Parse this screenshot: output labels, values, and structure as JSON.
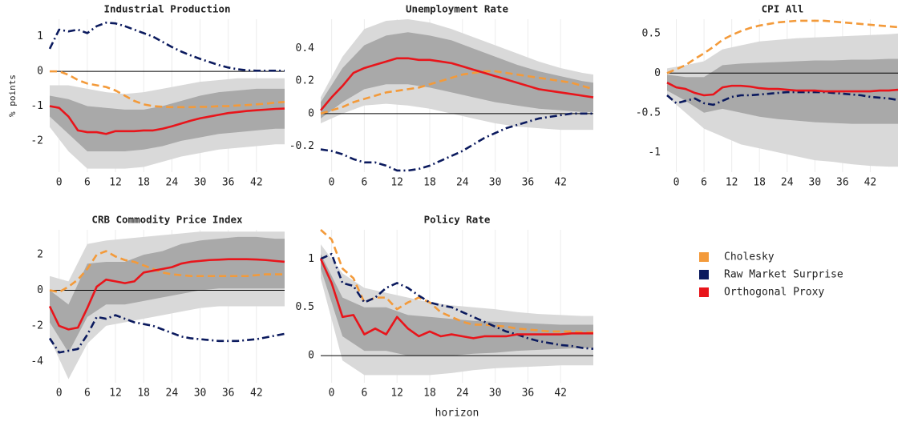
{
  "chart_data": [
    {
      "type": "line",
      "title": "Industrial Production",
      "ylabel": "% points",
      "x": [
        -2,
        0,
        2,
        4,
        6,
        8,
        10,
        12,
        14,
        16,
        18,
        20,
        22,
        24,
        26,
        28,
        30,
        32,
        34,
        36,
        38,
        40,
        42,
        44,
        46,
        48
      ],
      "xlim": [
        -2,
        48
      ],
      "xticks": [
        0,
        6,
        12,
        18,
        24,
        30,
        36,
        42
      ],
      "ylim": [
        -2.9,
        1.5
      ],
      "yticks": [
        -2,
        -1,
        0,
        1
      ],
      "grid": true,
      "reference_line": 0,
      "series": [
        {
          "name": "Cholesky",
          "color": "#f39a3a",
          "dash": "dashed",
          "values": [
            0,
            0,
            -0.1,
            -0.25,
            -0.35,
            -0.4,
            -0.45,
            -0.55,
            -0.7,
            -0.85,
            -0.95,
            -1.0,
            -1.02,
            -1.03,
            -1.03,
            -1.03,
            -1.02,
            -1.02,
            -1.0,
            -1.0,
            -0.98,
            -0.97,
            -0.95,
            -0.93,
            -0.9,
            -0.88
          ]
        },
        {
          "name": "Raw Market Surprise",
          "color": "#0b1a5e",
          "dash": "dashdot",
          "values": [
            0.65,
            1.2,
            1.15,
            1.2,
            1.1,
            1.3,
            1.4,
            1.38,
            1.3,
            1.2,
            1.1,
            1.0,
            0.85,
            0.7,
            0.57,
            0.46,
            0.36,
            0.27,
            0.18,
            0.11,
            0.06,
            0.03,
            0.02,
            0.02,
            0.02,
            0.02
          ]
        },
        {
          "name": "Orthogonal Proxy",
          "color": "#e8151b",
          "dash": "solid",
          "values": [
            -1.0,
            -1.05,
            -1.3,
            -1.7,
            -1.75,
            -1.75,
            -1.8,
            -1.72,
            -1.72,
            -1.72,
            -1.7,
            -1.7,
            -1.65,
            -1.58,
            -1.5,
            -1.42,
            -1.35,
            -1.3,
            -1.25,
            -1.2,
            -1.17,
            -1.14,
            -1.12,
            -1.1,
            -1.08,
            -1.07
          ]
        }
      ],
      "band_x": [
        -2,
        2,
        6,
        10,
        14,
        18,
        22,
        26,
        30,
        34,
        38,
        42,
        46,
        48
      ],
      "bands": [
        {
          "color": "#d9d9d9",
          "lower": [
            -1.6,
            -2.3,
            -2.8,
            -2.8,
            -2.8,
            -2.75,
            -2.6,
            -2.45,
            -2.35,
            -2.25,
            -2.2,
            -2.15,
            -2.1,
            -2.1
          ],
          "upper": [
            -0.4,
            -0.4,
            -0.5,
            -0.6,
            -0.65,
            -0.6,
            -0.5,
            -0.4,
            -0.3,
            -0.25,
            -0.2,
            -0.2,
            -0.2,
            -0.2
          ]
        },
        {
          "color": "#a9a9a9",
          "lower": [
            -1.3,
            -1.8,
            -2.3,
            -2.3,
            -2.3,
            -2.25,
            -2.15,
            -2.0,
            -1.9,
            -1.8,
            -1.75,
            -1.7,
            -1.65,
            -1.65
          ],
          "upper": [
            -0.7,
            -0.8,
            -1.0,
            -1.05,
            -1.1,
            -1.1,
            -1.0,
            -0.85,
            -0.7,
            -0.6,
            -0.55,
            -0.5,
            -0.5,
            -0.5
          ]
        }
      ]
    },
    {
      "type": "line",
      "title": "Unemployment Rate",
      "x": [
        -2,
        0,
        2,
        4,
        6,
        8,
        10,
        12,
        14,
        16,
        18,
        20,
        22,
        24,
        26,
        28,
        30,
        32,
        34,
        36,
        38,
        40,
        42,
        44,
        46,
        48
      ],
      "xlim": [
        -2,
        48
      ],
      "xticks": [
        0,
        6,
        12,
        18,
        24,
        30,
        36,
        42
      ],
      "ylim": [
        -0.36,
        0.58
      ],
      "yticks": [
        -0.2,
        0,
        0.2,
        0.4
      ],
      "grid": true,
      "reference_line": 0,
      "series": [
        {
          "color": "#f39a3a",
          "dash": "dashed",
          "values": [
            0,
            0.02,
            0.04,
            0.07,
            0.09,
            0.11,
            0.13,
            0.14,
            0.15,
            0.16,
            0.18,
            0.2,
            0.22,
            0.24,
            0.25,
            0.26,
            0.26,
            0.25,
            0.24,
            0.23,
            0.22,
            0.21,
            0.2,
            0.19,
            0.17,
            0.15
          ]
        },
        {
          "color": "#0b1a5e",
          "dash": "dashdot",
          "values": [
            -0.22,
            -0.23,
            -0.25,
            -0.28,
            -0.3,
            -0.3,
            -0.32,
            -0.35,
            -0.35,
            -0.34,
            -0.32,
            -0.29,
            -0.26,
            -0.23,
            -0.19,
            -0.15,
            -0.12,
            -0.09,
            -0.07,
            -0.05,
            -0.03,
            -0.02,
            -0.01,
            0,
            0,
            0
          ]
        },
        {
          "color": "#e8151b",
          "dash": "solid",
          "values": [
            0.02,
            0.1,
            0.17,
            0.25,
            0.28,
            0.3,
            0.32,
            0.34,
            0.34,
            0.33,
            0.33,
            0.32,
            0.31,
            0.29,
            0.27,
            0.25,
            0.23,
            0.21,
            0.19,
            0.17,
            0.15,
            0.14,
            0.13,
            0.12,
            0.11,
            0.1
          ]
        }
      ],
      "band_x": [
        -2,
        2,
        6,
        10,
        14,
        18,
        22,
        26,
        30,
        34,
        38,
        42,
        46,
        48
      ],
      "bands": [
        {
          "color": "#d9d9d9",
          "lower": [
            -0.06,
            0.0,
            0.05,
            0.06,
            0.05,
            0.03,
            0.0,
            -0.03,
            -0.06,
            -0.08,
            -0.09,
            -0.1,
            -0.1,
            -0.1
          ],
          "upper": [
            0.1,
            0.35,
            0.52,
            0.57,
            0.58,
            0.56,
            0.52,
            0.47,
            0.42,
            0.37,
            0.32,
            0.28,
            0.25,
            0.24
          ]
        },
        {
          "color": "#a9a9a9",
          "lower": [
            -0.03,
            0.07,
            0.15,
            0.18,
            0.18,
            0.16,
            0.13,
            0.1,
            0.07,
            0.05,
            0.03,
            0.02,
            0.01,
            0.01
          ],
          "upper": [
            0.07,
            0.28,
            0.42,
            0.48,
            0.5,
            0.48,
            0.45,
            0.4,
            0.35,
            0.3,
            0.26,
            0.23,
            0.2,
            0.19
          ]
        }
      ]
    },
    {
      "type": "line",
      "title": "CPI All",
      "x": [
        -2,
        0,
        2,
        4,
        6,
        8,
        10,
        12,
        14,
        16,
        18,
        20,
        22,
        24,
        26,
        28,
        30,
        32,
        34,
        36,
        38,
        40,
        42,
        44,
        46,
        48
      ],
      "xlim": [
        -2,
        48
      ],
      "xticks": [
        0,
        6,
        12,
        18,
        24,
        30,
        36,
        42
      ],
      "ylim": [
        -1.25,
        0.68
      ],
      "yticks": [
        -1,
        -0.5,
        0,
        0.5
      ],
      "grid": true,
      "reference_line": 0,
      "series": [
        {
          "color": "#f39a3a",
          "dash": "dashed",
          "values": [
            0,
            0.05,
            0.1,
            0.18,
            0.25,
            0.33,
            0.42,
            0.48,
            0.53,
            0.57,
            0.6,
            0.62,
            0.64,
            0.65,
            0.66,
            0.66,
            0.66,
            0.66,
            0.65,
            0.64,
            0.63,
            0.62,
            0.61,
            0.6,
            0.59,
            0.58
          ]
        },
        {
          "color": "#0b1a5e",
          "dash": "dashdot",
          "values": [
            -0.28,
            -0.38,
            -0.35,
            -0.32,
            -0.38,
            -0.4,
            -0.35,
            -0.3,
            -0.28,
            -0.28,
            -0.27,
            -0.26,
            -0.25,
            -0.24,
            -0.24,
            -0.24,
            -0.24,
            -0.24,
            -0.25,
            -0.26,
            -0.27,
            -0.28,
            -0.3,
            -0.31,
            -0.32,
            -0.34
          ]
        },
        {
          "color": "#e8151b",
          "dash": "solid",
          "values": [
            -0.12,
            -0.18,
            -0.2,
            -0.25,
            -0.28,
            -0.27,
            -0.18,
            -0.16,
            -0.16,
            -0.17,
            -0.19,
            -0.2,
            -0.2,
            -0.21,
            -0.22,
            -0.22,
            -0.22,
            -0.23,
            -0.23,
            -0.23,
            -0.23,
            -0.23,
            -0.23,
            -0.22,
            -0.22,
            -0.21
          ]
        }
      ],
      "band_x": [
        -2,
        2,
        6,
        10,
        14,
        18,
        22,
        26,
        30,
        34,
        38,
        42,
        46,
        48
      ],
      "bands": [
        {
          "color": "#d9d9d9",
          "lower": [
            -0.3,
            -0.5,
            -0.7,
            -0.8,
            -0.9,
            -0.95,
            -1.0,
            -1.05,
            -1.1,
            -1.12,
            -1.15,
            -1.17,
            -1.18,
            -1.18
          ],
          "upper": [
            0.06,
            0.1,
            0.15,
            0.3,
            0.35,
            0.4,
            0.42,
            0.44,
            0.45,
            0.46,
            0.47,
            0.48,
            0.49,
            0.5
          ]
        },
        {
          "color": "#a9a9a9",
          "lower": [
            -0.22,
            -0.35,
            -0.5,
            -0.45,
            -0.5,
            -0.55,
            -0.58,
            -0.6,
            -0.62,
            -0.63,
            -0.64,
            -0.64,
            -0.64,
            -0.64
          ],
          "upper": [
            -0.02,
            -0.05,
            -0.05,
            0.1,
            0.12,
            0.13,
            0.14,
            0.15,
            0.16,
            0.16,
            0.17,
            0.17,
            0.18,
            0.18
          ]
        }
      ]
    },
    {
      "type": "line",
      "title": "CRB Commodity Price Index",
      "x": [
        -2,
        0,
        2,
        4,
        6,
        8,
        10,
        12,
        14,
        16,
        18,
        20,
        22,
        24,
        26,
        28,
        30,
        32,
        34,
        36,
        38,
        40,
        42,
        44,
        46,
        48
      ],
      "xlim": [
        -2,
        48
      ],
      "xticks": [
        0,
        6,
        12,
        18,
        24,
        30,
        36,
        42
      ],
      "ylim": [
        -5.2,
        3.4
      ],
      "yticks": [
        -4,
        -2,
        0,
        2
      ],
      "grid": true,
      "reference_line": 0,
      "series": [
        {
          "color": "#f39a3a",
          "dash": "dashed",
          "values": [
            0,
            -0.1,
            0.2,
            0.6,
            1.2,
            2.0,
            2.2,
            1.9,
            1.7,
            1.6,
            1.4,
            1.2,
            1.0,
            0.9,
            0.85,
            0.8,
            0.8,
            0.8,
            0.8,
            0.8,
            0.8,
            0.8,
            0.85,
            0.9,
            0.9,
            0.9
          ]
        },
        {
          "color": "#0b1a5e",
          "dash": "dashdot",
          "values": [
            -2.7,
            -3.5,
            -3.4,
            -3.3,
            -2.5,
            -1.5,
            -1.6,
            -1.4,
            -1.6,
            -1.8,
            -1.9,
            -2.0,
            -2.2,
            -2.4,
            -2.6,
            -2.7,
            -2.75,
            -2.8,
            -2.85,
            -2.85,
            -2.85,
            -2.8,
            -2.75,
            -2.65,
            -2.55,
            -2.45
          ]
        },
        {
          "color": "#e8151b",
          "dash": "solid",
          "values": [
            -0.9,
            -2.0,
            -2.2,
            -2.1,
            -1.0,
            0.2,
            0.6,
            0.5,
            0.4,
            0.5,
            1.0,
            1.1,
            1.2,
            1.3,
            1.5,
            1.6,
            1.65,
            1.7,
            1.72,
            1.75,
            1.75,
            1.75,
            1.73,
            1.7,
            1.65,
            1.6
          ]
        }
      ],
      "band_x": [
        -2,
        2,
        6,
        10,
        14,
        18,
        22,
        26,
        30,
        34,
        38,
        42,
        46,
        48
      ],
      "bands": [
        {
          "color": "#d9d9d9",
          "lower": [
            -2.7,
            -5.0,
            -3.0,
            -2.0,
            -1.8,
            -1.6,
            -1.4,
            -1.2,
            -1.0,
            -0.9,
            -0.9,
            -0.9,
            -0.9,
            -0.9
          ],
          "upper": [
            0.8,
            0.5,
            2.6,
            2.8,
            2.9,
            3.0,
            3.1,
            3.2,
            3.3,
            3.3,
            3.3,
            3.3,
            3.3,
            3.3
          ]
        },
        {
          "color": "#a9a9a9",
          "lower": [
            -1.8,
            -3.5,
            -1.5,
            -0.8,
            -0.8,
            -0.6,
            -0.4,
            -0.2,
            0,
            0.1,
            0.1,
            0.1,
            0.1,
            0.1
          ],
          "upper": [
            0,
            -0.8,
            1.5,
            1.6,
            1.6,
            2.0,
            2.2,
            2.6,
            2.8,
            2.9,
            3.0,
            3.0,
            2.9,
            2.9
          ]
        }
      ]
    },
    {
      "type": "line",
      "title": "Policy Rate",
      "xlabel": "horizon",
      "x": [
        -2,
        0,
        2,
        4,
        6,
        8,
        10,
        12,
        14,
        16,
        18,
        20,
        22,
        24,
        26,
        28,
        30,
        32,
        34,
        36,
        38,
        40,
        42,
        44,
        46,
        48
      ],
      "xlim": [
        -2,
        48
      ],
      "xticks": [
        0,
        6,
        12,
        18,
        24,
        30,
        36,
        42
      ],
      "ylim": [
        -0.28,
        1.3
      ],
      "yticks": [
        0,
        0.5,
        1
      ],
      "grid": true,
      "reference_line": 0,
      "series": [
        {
          "color": "#f39a3a",
          "dash": "dashed",
          "values": [
            1.3,
            1.2,
            0.9,
            0.8,
            0.55,
            0.6,
            0.6,
            0.48,
            0.55,
            0.6,
            0.55,
            0.45,
            0.4,
            0.35,
            0.32,
            0.32,
            0.31,
            0.3,
            0.28,
            0.27,
            0.26,
            0.25,
            0.25,
            0.25,
            0.24,
            0.24
          ]
        },
        {
          "color": "#0b1a5e",
          "dash": "dashdot",
          "values": [
            1.0,
            1.05,
            0.75,
            0.72,
            0.55,
            0.6,
            0.7,
            0.75,
            0.7,
            0.62,
            0.55,
            0.52,
            0.5,
            0.45,
            0.4,
            0.35,
            0.3,
            0.25,
            0.22,
            0.18,
            0.15,
            0.13,
            0.11,
            0.1,
            0.08,
            0.07
          ]
        },
        {
          "color": "#e8151b",
          "dash": "solid",
          "values": [
            1.0,
            0.75,
            0.4,
            0.42,
            0.22,
            0.28,
            0.22,
            0.4,
            0.28,
            0.2,
            0.25,
            0.2,
            0.22,
            0.2,
            0.18,
            0.2,
            0.2,
            0.2,
            0.22,
            0.22,
            0.22,
            0.22,
            0.22,
            0.23,
            0.23,
            0.23
          ]
        }
      ],
      "band_x": [
        -2,
        2,
        6,
        10,
        14,
        18,
        22,
        26,
        30,
        34,
        38,
        42,
        46,
        48
      ],
      "bands": [
        {
          "color": "#d9d9d9",
          "lower": [
            0.8,
            -0.05,
            -0.2,
            -0.2,
            -0.2,
            -0.2,
            -0.18,
            -0.15,
            -0.13,
            -0.12,
            -0.11,
            -0.1,
            -0.1,
            -0.1
          ],
          "upper": [
            1.15,
            0.85,
            0.7,
            0.65,
            0.6,
            0.55,
            0.52,
            0.5,
            0.48,
            0.45,
            0.43,
            0.42,
            0.41,
            0.41
          ]
        },
        {
          "color": "#a9a9a9",
          "lower": [
            0.9,
            0.2,
            0.05,
            0.05,
            0.0,
            0.0,
            0.0,
            0.02,
            0.03,
            0.05,
            0.06,
            0.07,
            0.08,
            0.08
          ],
          "upper": [
            1.05,
            0.6,
            0.5,
            0.5,
            0.42,
            0.4,
            0.38,
            0.36,
            0.35,
            0.34,
            0.33,
            0.32,
            0.32,
            0.32
          ]
        }
      ]
    }
  ]
}
